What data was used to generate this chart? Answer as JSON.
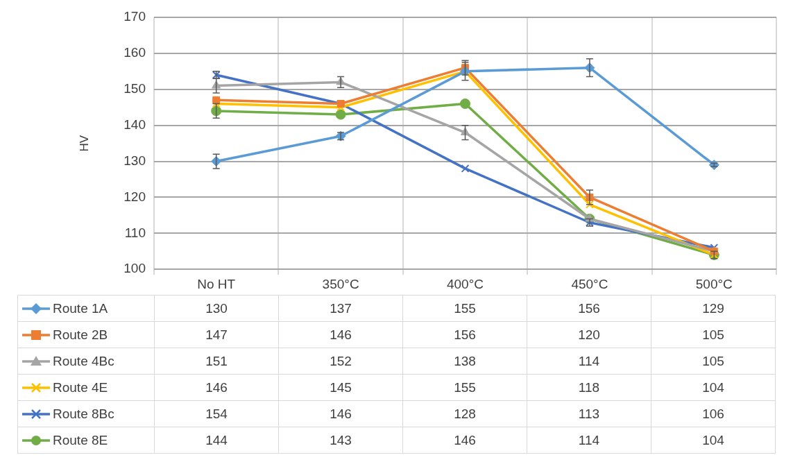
{
  "chart_data": {
    "type": "line",
    "ylabel": "HV",
    "categories": [
      "No HT",
      "350°C",
      "400°C",
      "450°C",
      "500°C"
    ],
    "ylim": [
      100,
      170
    ],
    "yticks": [
      100,
      110,
      120,
      130,
      140,
      150,
      160,
      170
    ],
    "grid": true,
    "legend": "bottom",
    "data_labels": true,
    "line_style": "solid",
    "series": [
      {
        "name": "Route 1A",
        "color": "#5b9bd5",
        "marker": "diamond",
        "values": [
          130,
          137,
          155,
          156,
          129
        ],
        "errors": [
          2,
          1,
          2.5,
          2.5,
          0.5
        ]
      },
      {
        "name": "Route 2B",
        "color": "#ed7d31",
        "marker": "square",
        "values": [
          147,
          146,
          156,
          120,
          105
        ],
        "errors": [
          null,
          null,
          2,
          2,
          null
        ]
      },
      {
        "name": "Route 4Bc",
        "color": "#a5a5a5",
        "marker": "triangle",
        "values": [
          151,
          152,
          138,
          114,
          105
        ],
        "errors": [
          2,
          1.5,
          2,
          null,
          null
        ]
      },
      {
        "name": "Route 4E",
        "color": "#ffc000",
        "marker": "cross",
        "values": [
          146,
          145,
          155,
          118,
          104
        ],
        "errors": [
          null,
          null,
          null,
          null,
          null
        ]
      },
      {
        "name": "Route 8Bc",
        "color": "#4472c4",
        "marker": "cross",
        "values": [
          154,
          146,
          128,
          113,
          106
        ],
        "errors": [
          1,
          null,
          null,
          1,
          null
        ]
      },
      {
        "name": "Route 8E",
        "color": "#70ad47",
        "marker": "circle",
        "values": [
          144,
          143,
          146,
          114,
          104
        ],
        "errors": [
          2,
          null,
          null,
          null,
          1
        ]
      }
    ]
  }
}
